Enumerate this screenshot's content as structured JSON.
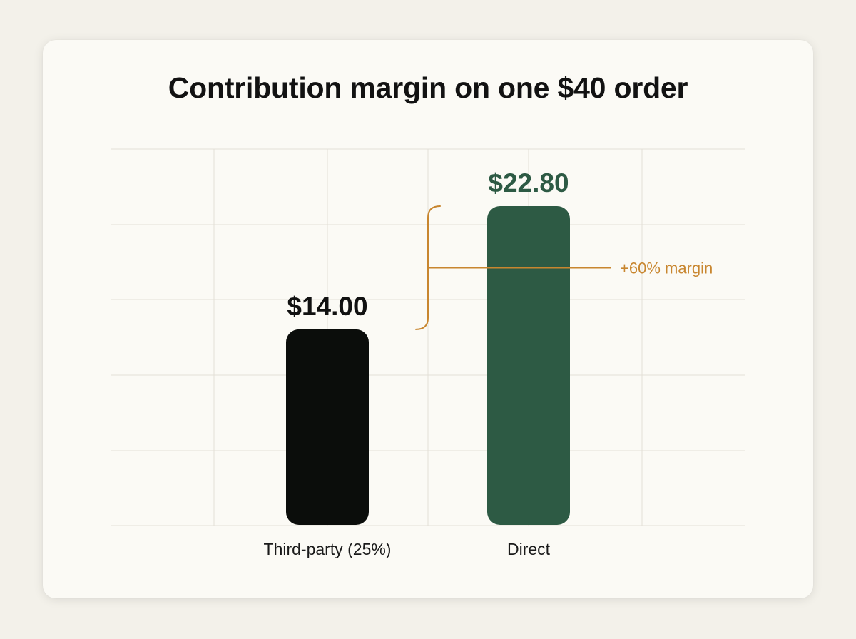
{
  "colors": {
    "background": "#f3f1ea",
    "card": "#fbfaf5",
    "bar_third_party": "#0b0d0b",
    "bar_direct": "#2d5a44",
    "annotation": "#c8862f",
    "grid": "#e3e0d6"
  },
  "chart_data": {
    "type": "bar",
    "title": "Contribution margin on one $40 order",
    "categories": [
      "Third-party (25%)",
      "Direct"
    ],
    "values": [
      14.0,
      22.8
    ],
    "value_labels": [
      "$14.00",
      "$22.80"
    ],
    "bar_colors": [
      "#0b0d0b",
      "#2d5a44"
    ],
    "value_label_colors": [
      "#111111",
      "#2d5a44"
    ],
    "ylim": [
      0,
      25
    ],
    "grid": true,
    "legend": "none",
    "annotation": {
      "text": "+60% margin",
      "from_value": 14.0,
      "to_value": 22.8,
      "color": "#c8862f"
    }
  }
}
